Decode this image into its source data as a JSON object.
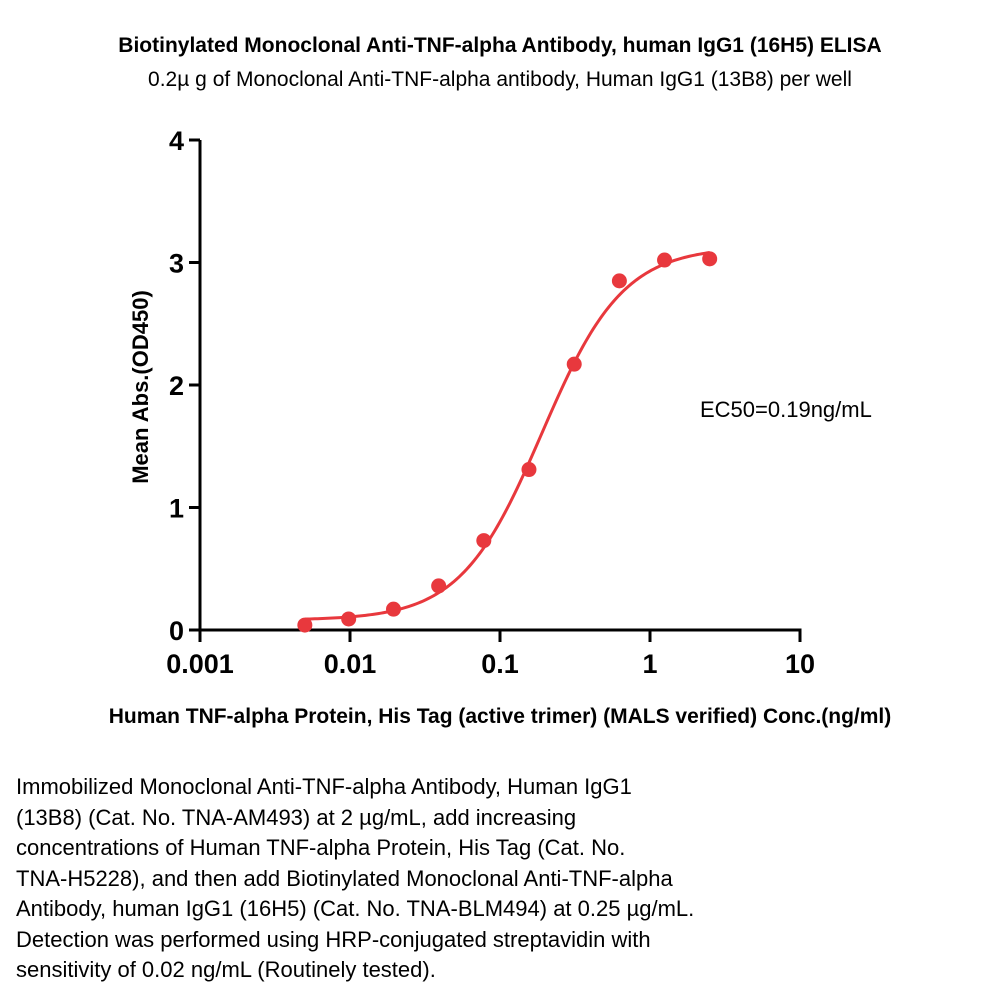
{
  "chart_data": {
    "type": "scatter",
    "title": "Biotinylated Monoclonal Anti-TNF-alpha Antibody, human IgG1 (16H5) ELISA",
    "subtitle": "0.2µ g of Monoclonal Anti-TNF-alpha antibody, Human IgG1 (13B8) per well",
    "xlabel": "Human TNF-alpha Protein, His Tag (active trimer) (MALS verified) Conc.(ng/ml)",
    "ylabel": "Mean Abs.(OD450)",
    "x_scale": "log",
    "xlim": [
      0.001,
      10
    ],
    "ylim": [
      0,
      4
    ],
    "x_ticks": [
      "0.001",
      "0.01",
      "0.1",
      "1",
      "10"
    ],
    "y_ticks": [
      "0",
      "1",
      "2",
      "3",
      "4"
    ],
    "grid": false,
    "series": [
      {
        "color": "#e8383d",
        "x": [
          0.005,
          0.0098,
          0.0195,
          0.039,
          0.078,
          0.156,
          0.3125,
          0.625,
          1.25,
          2.5
        ],
        "y": [
          0.04,
          0.09,
          0.17,
          0.36,
          0.73,
          1.31,
          2.17,
          2.85,
          3.02,
          3.03
        ],
        "fit": "4PL sigmoid",
        "fit_params": {
          "bottom": 0.08,
          "top": 3.13,
          "ec50": 0.19,
          "hill": 1.6
        }
      }
    ],
    "annotations": [
      {
        "text": "EC50=0.19ng/mL"
      }
    ]
  },
  "caption": [
    "Immobilized Monoclonal Anti-TNF-alpha Antibody, Human IgG1",
    "(13B8) (Cat. No. TNA-AM493) at 2 µg/mL, add increasing",
    "concentrations of Human TNF-alpha Protein, His Tag (Cat. No.",
    "TNA-H5228), and then add Biotinylated Monoclonal Anti-TNF-alpha",
    "Antibody, human IgG1 (16H5) (Cat. No. TNA-BLM494) at 0.25 µg/mL.",
    "Detection was performed using HRP-conjugated streptavidin with",
    "sensitivity of 0.02 ng/mL (Routinely tested)."
  ]
}
